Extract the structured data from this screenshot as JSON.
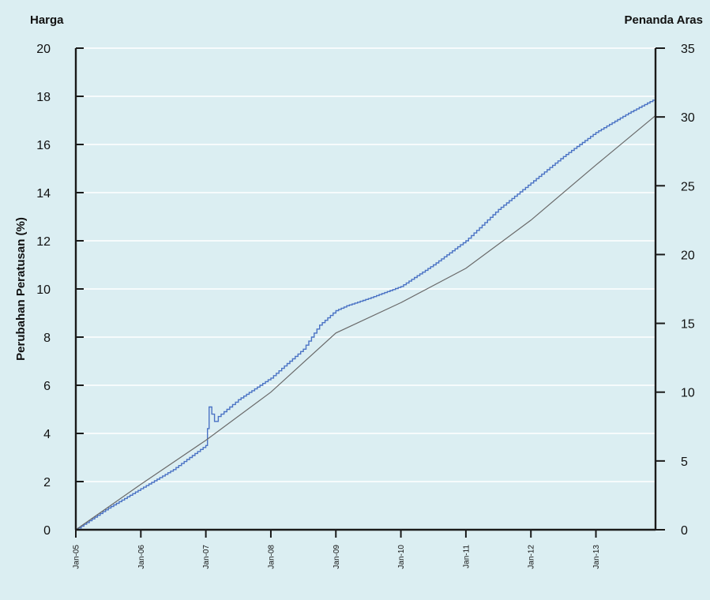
{
  "chart_data": {
    "type": "line",
    "left_axis_title": "Harga",
    "right_axis_title": "Penanda Aras",
    "ylabel": "Perubahan Peratusan (%)",
    "ylim_left": [
      0,
      20
    ],
    "ylim_right": [
      0,
      35
    ],
    "left_ticks": [
      "0",
      "2",
      "4",
      "6",
      "8",
      "10",
      "12",
      "14",
      "16",
      "18",
      "20"
    ],
    "right_ticks": [
      "0",
      "5",
      "10",
      "15",
      "20",
      "25",
      "30",
      "35"
    ],
    "x_ticks": [
      "Jan-05",
      "Jan-06",
      "Jan-07",
      "Jan-08",
      "Jan-09",
      "Jan-10",
      "Jan-11",
      "Jan-12",
      "Jan-13"
    ],
    "xlim": [
      0,
      107
    ],
    "grid": true,
    "background": "#dbeef2",
    "series": [
      {
        "axis": "left",
        "color": "#4a72c4",
        "stepped": true,
        "x": [
          0,
          6,
          12,
          18,
          24,
          24.3,
          24.6,
          25.6,
          26.3,
          30,
          36,
          42,
          45,
          48,
          50,
          54,
          60,
          66,
          72,
          78,
          84,
          90,
          96,
          102,
          107
        ],
        "y": [
          0,
          0.9,
          1.7,
          2.5,
          3.5,
          4.2,
          5.1,
          4.5,
          4.7,
          5.4,
          6.3,
          7.5,
          8.5,
          9.1,
          9.3,
          9.6,
          10.1,
          11.0,
          12.0,
          13.3,
          14.4,
          15.5,
          16.5,
          17.3,
          17.9
        ]
      },
      {
        "axis": "right",
        "color": "#6a6a6a",
        "stepped": false,
        "x": [
          0,
          12,
          24,
          36,
          48,
          60,
          72,
          84,
          96,
          107
        ],
        "y": [
          0,
          3.3,
          6.5,
          10,
          14.3,
          16.5,
          19,
          22.5,
          26.5,
          30.1
        ]
      }
    ]
  }
}
